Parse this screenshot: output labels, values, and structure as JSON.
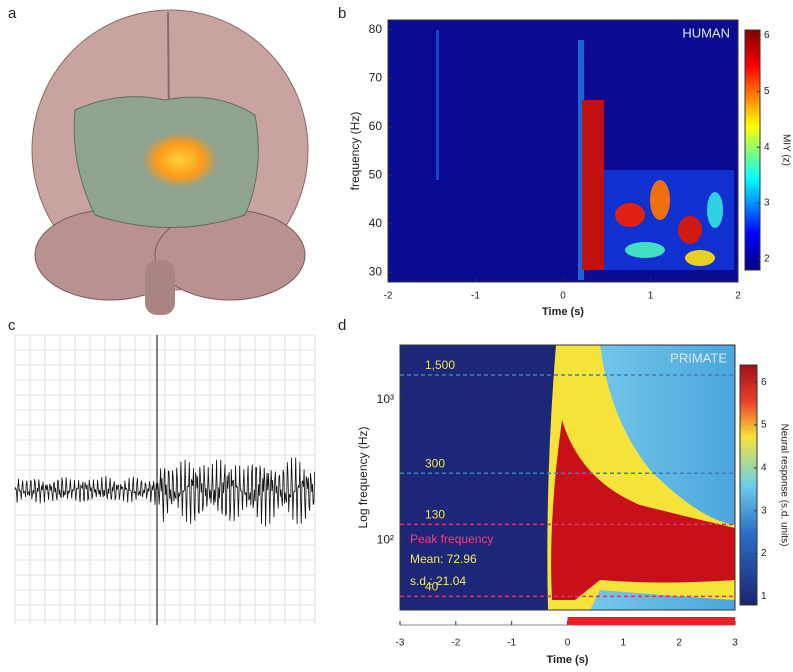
{
  "panel_labels": [
    "a",
    "b",
    "c",
    "d"
  ],
  "chart_data": [
    {
      "type": "heatmap",
      "annotation": "HUMAN",
      "xlabel": "Time (s)",
      "ylabel": "frequency (Hz)",
      "xlim": [
        -2,
        2
      ],
      "xticks": [
        -2,
        -1,
        0,
        1,
        2
      ],
      "ylim": [
        28,
        82
      ],
      "yticks": [
        30,
        40,
        50,
        60,
        70,
        80
      ],
      "colorbar": {
        "label": "MIY (z)",
        "lim": [
          1.8,
          6.1
        ],
        "ticks": [
          2,
          3,
          4,
          5,
          6
        ]
      }
    },
    {
      "type": "heatmap",
      "annotation": "PRIMATE",
      "xlabel": "Time (s)",
      "ylabel": "Log frequency (Hz)",
      "xlim": [
        -3,
        3
      ],
      "xticks": [
        -3,
        -2,
        -1,
        0,
        1,
        2,
        3
      ],
      "ylim": [
        32,
        2450
      ],
      "log_y": true,
      "yticks": [
        {
          "value": 1000,
          "label": "10³"
        },
        {
          "value": 100,
          "label": "10²"
        }
      ],
      "reference_lines": [
        {
          "value": 1500,
          "label": "1,500",
          "color": "#3f7fb8"
        },
        {
          "value": 300,
          "label": "300",
          "color": "#3f7fb8"
        },
        {
          "value": 130,
          "label": "130",
          "color": "#e0306a"
        },
        {
          "value": 40,
          "label": "40",
          "color": "#e0306a"
        }
      ],
      "peak_title": "Peak frequency",
      "peak_mean": "Mean: 72.96",
      "peak_sd": "s.d.: 21.04",
      "stimulus": {
        "start": 0,
        "end": 3,
        "color": "#e8202a"
      },
      "colorbar": {
        "label": "Neural response (s.d. units)",
        "lim": [
          0.8,
          6.4
        ],
        "ticks": [
          1,
          2,
          3,
          4,
          5,
          6
        ]
      }
    }
  ]
}
